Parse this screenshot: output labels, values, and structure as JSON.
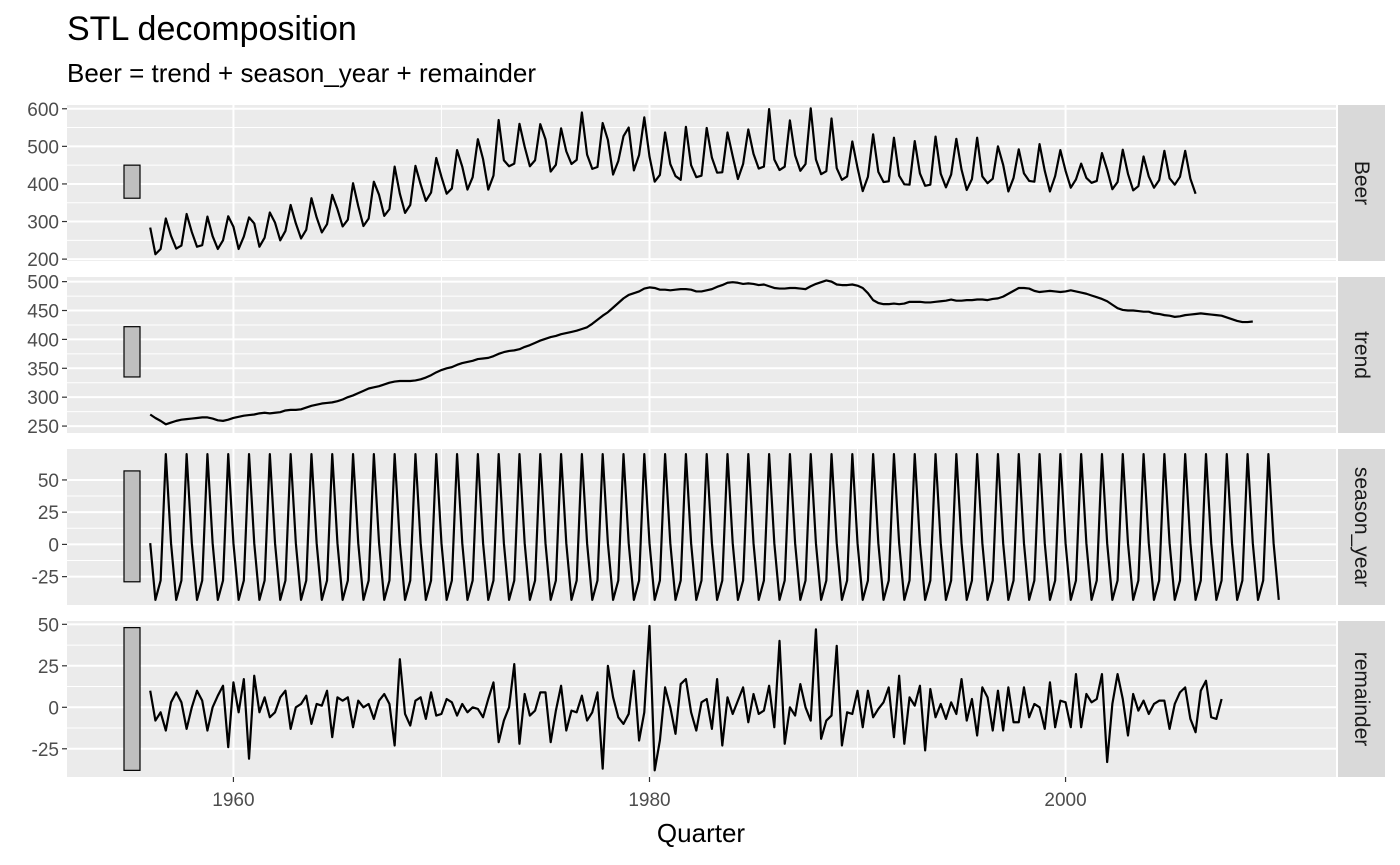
{
  "chart_data": {
    "type": "line",
    "title": "STL decomposition",
    "subtitle": "Beer = trend + season_year + remainder",
    "xlabel": "Quarter",
    "x_ticks": [
      "1960",
      "1980",
      "2000"
    ],
    "x_tick_values": [
      1960,
      1980,
      2000
    ],
    "x_range": [
      1952,
      2013
    ],
    "x_start": 1956.0,
    "x_step": 0.25,
    "panel_background": "#ebebeb",
    "strip_background": "#d9d9d9",
    "grid": true,
    "line_color": "#000000",
    "scale_bar_color": "#bfbfbf",
    "facets": [
      {
        "name": "Beer",
        "ylim": [
          195,
          610
        ],
        "y_ticks": [
          200,
          300,
          400,
          500,
          600
        ],
        "y_tick_labels": [
          "200",
          "300",
          "400",
          "500",
          "600"
        ],
        "scale_bar": [
          362,
          450
        ],
        "values": [
          284,
          213,
          227,
          308,
          262,
          228,
          236,
          320,
          272,
          233,
          237,
          313,
          261,
          227,
          250,
          314,
          286,
          227,
          260,
          311,
          295,
          233,
          257,
          324,
          297,
          250,
          275,
          344,
          295,
          255,
          278,
          362,
          311,
          271,
          293,
          371,
          333,
          287,
          305,
          402,
          341,
          288,
          308,
          406,
          371,
          315,
          333,
          446,
          374,
          323,
          344,
          448,
          399,
          355,
          377,
          469,
          419,
          374,
          388,
          490,
          446,
          385,
          418,
          519,
          466,
          385,
          422,
          570,
          463,
          447,
          454,
          560,
          499,
          447,
          463,
          559,
          519,
          433,
          451,
          548,
          487,
          453,
          464,
          590,
          478,
          440,
          445,
          562,
          517,
          425,
          461,
          527,
          550,
          436,
          477,
          577,
          473,
          406,
          424,
          537,
          453,
          421,
          411,
          552,
          450,
          418,
          422,
          549,
          470,
          430,
          431,
          537,
          474,
          413,
          453,
          545,
          480,
          441,
          446,
          599,
          465,
          437,
          446,
          569,
          476,
          435,
          453,
          601,
          465,
          426,
          434,
          574,
          442,
          411,
          420,
          513,
          443,
          381,
          419,
          532,
          432,
          405,
          407,
          523,
          422,
          399,
          398,
          514,
          428,
          395,
          398,
          526,
          427,
          391,
          425,
          520,
          438,
          384,
          413,
          523,
          420,
          402,
          414,
          500,
          451,
          380,
          416,
          492,
          428,
          408,
          406,
          506,
          435,
          380,
          421,
          490,
          435,
          390,
          412,
          454,
          416,
          403,
          408,
          482,
          438,
          386,
          405,
          491,
          427,
          383,
          394,
          473,
          420,
          390,
          410,
          488,
          415,
          398,
          419,
          488,
          414,
          374
        ]
      },
      {
        "name": "trend",
        "ylim": [
          238,
          508
        ],
        "y_ticks": [
          250,
          300,
          350,
          400,
          450,
          500
        ],
        "y_tick_labels": [
          "250",
          "300",
          "350",
          "400",
          "450",
          "500"
        ],
        "scale_bar": [
          335,
          422
        ],
        "values": [
          270,
          264,
          259,
          253,
          256,
          259,
          261,
          262,
          263,
          264,
          265,
          265,
          263,
          260,
          259,
          261,
          264,
          266,
          268,
          269,
          270,
          272,
          273,
          272,
          273,
          274,
          277,
          278,
          278,
          279,
          282,
          285,
          287,
          289,
          290,
          291,
          293,
          296,
          300,
          303,
          307,
          311,
          315,
          317,
          319,
          322,
          325,
          327,
          328,
          328,
          328,
          329,
          331,
          334,
          338,
          343,
          347,
          350,
          352,
          356,
          359,
          361,
          363,
          366,
          367,
          368,
          371,
          375,
          378,
          380,
          381,
          383,
          387,
          390,
          394,
          398,
          401,
          404,
          406,
          409,
          411,
          413,
          415,
          418,
          421,
          427,
          434,
          441,
          447,
          455,
          463,
          471,
          477,
          480,
          483,
          488,
          490,
          489,
          486,
          486,
          485,
          486,
          487,
          487,
          486,
          483,
          483,
          485,
          487,
          491,
          494,
          498,
          499,
          498,
          496,
          497,
          496,
          494,
          495,
          492,
          489,
          488,
          488,
          489,
          489,
          488,
          487,
          492,
          496,
          499,
          502,
          500,
          495,
          494,
          494,
          495,
          493,
          489,
          480,
          468,
          463,
          461,
          461,
          462,
          461,
          462,
          465,
          465,
          465,
          464,
          464,
          465,
          466,
          467,
          469,
          467,
          467,
          468,
          468,
          469,
          469,
          468,
          470,
          471,
          474,
          479,
          484,
          489,
          489,
          488,
          484,
          482,
          483,
          484,
          483,
          482,
          483,
          485,
          483,
          481,
          479,
          476,
          473,
          470,
          466,
          460,
          454,
          451,
          450,
          450,
          449,
          448,
          448,
          445,
          444,
          442,
          441,
          439,
          440,
          442,
          443,
          444,
          445,
          444,
          443,
          442,
          441,
          438,
          435,
          432,
          430,
          430,
          431
        ]
      },
      {
        "name": "season_year",
        "ylim": [
          -47,
          74
        ],
        "y_ticks": [
          -25,
          0,
          25,
          50
        ],
        "y_tick_labels": [
          "-25",
          "0",
          "25",
          "50"
        ],
        "scale_bar": [
          -29,
          57
        ],
        "values": [
          1,
          -43,
          -28,
          70,
          1,
          -43,
          -28,
          70,
          1,
          -43,
          -28,
          70,
          1,
          -43,
          -28,
          70,
          1,
          -43,
          -28,
          70,
          1,
          -43,
          -28,
          70,
          1,
          -43,
          -28,
          70,
          1,
          -43,
          -28,
          70,
          1,
          -43,
          -28,
          70,
          1,
          -43,
          -28,
          70,
          1,
          -43,
          -28,
          70,
          1,
          -43,
          -28,
          70,
          1,
          -43,
          -28,
          70,
          1,
          -43,
          -28,
          70,
          1,
          -43,
          -28,
          70,
          1,
          -43,
          -28,
          70,
          1,
          -43,
          -28,
          70,
          1,
          -43,
          -28,
          70,
          1,
          -43,
          -28,
          70,
          1,
          -43,
          -28,
          70,
          1,
          -43,
          -28,
          70,
          1,
          -43,
          -28,
          70,
          1,
          -43,
          -28,
          70,
          1,
          -43,
          -28,
          70,
          1,
          -43,
          -28,
          70,
          1,
          -43,
          -28,
          70,
          1,
          -43,
          -28,
          70,
          1,
          -43,
          -28,
          70,
          1,
          -43,
          -28,
          70,
          1,
          -43,
          -28,
          70,
          1,
          -43,
          -28,
          70,
          1,
          -43,
          -28,
          70,
          1,
          -43,
          -28,
          70,
          1,
          -43,
          -28,
          70,
          1,
          -43,
          -28,
          70,
          1,
          -43,
          -28,
          70,
          1,
          -43,
          -28,
          70,
          1,
          -43,
          -28,
          70,
          1,
          -43,
          -28,
          70,
          1,
          -43,
          -28,
          70,
          1,
          -43,
          -28,
          70,
          1,
          -43,
          -28,
          70,
          1,
          -43,
          -28,
          70,
          1,
          -43,
          -28,
          70,
          1,
          -43,
          -28,
          70,
          1,
          -43,
          -28,
          70,
          1,
          -43,
          -28,
          70,
          1,
          -43,
          -28,
          70,
          1,
          -43,
          -28,
          70,
          1,
          -43,
          -28,
          70,
          1,
          -43,
          -28,
          70,
          1,
          -43,
          -28,
          70,
          1,
          -43,
          -28,
          70,
          1,
          -43,
          -28,
          70,
          1,
          -43
        ]
      },
      {
        "name": "remainder",
        "ylim": [
          -42,
          52
        ],
        "y_ticks": [
          -25,
          0,
          25,
          50
        ],
        "y_tick_labels": [
          "-25",
          "0",
          "25",
          "50"
        ],
        "scale_bar": [
          -38,
          48
        ],
        "values": [
          10,
          -8,
          -3,
          -14,
          3,
          9,
          3,
          -13,
          0,
          10,
          4,
          -14,
          0,
          7,
          13,
          -24,
          15,
          -3,
          17,
          -31,
          19,
          -3,
          6,
          -6,
          -3,
          6,
          10,
          -13,
          0,
          2,
          7,
          -10,
          2,
          1,
          10,
          -18,
          6,
          4,
          6,
          -12,
          4,
          0,
          2,
          -7,
          4,
          8,
          2,
          -23,
          29,
          -4,
          -11,
          4,
          6,
          -7,
          9,
          -5,
          -4,
          5,
          3,
          -5,
          2,
          -3,
          0,
          -1,
          -6,
          5,
          15,
          -21,
          -8,
          0,
          26,
          -22,
          8,
          -5,
          -2,
          9,
          9,
          -21,
          -2,
          13,
          -14,
          -2,
          -3,
          7,
          -8,
          -3,
          9,
          -37,
          25,
          6,
          -6,
          -10,
          -4,
          22,
          -20,
          -3,
          49,
          -38,
          -20,
          12,
          0,
          -16,
          14,
          17,
          -3,
          -14,
          3,
          5,
          -13,
          17,
          -23,
          6,
          -4,
          4,
          12,
          -9,
          8,
          -4,
          -2,
          13,
          -12,
          40,
          -22,
          0,
          -5,
          14,
          0,
          -8,
          47,
          -19,
          -8,
          -5,
          37,
          -23,
          -3,
          -4,
          10,
          -12,
          10,
          -6,
          -1,
          3,
          12,
          -18,
          19,
          -22,
          6,
          1,
          13,
          -26,
          11,
          -6,
          2,
          -7,
          3,
          -4,
          17,
          -8,
          5,
          -17,
          12,
          6,
          -14,
          10,
          -14,
          12,
          -9,
          -9,
          12,
          -6,
          2,
          0,
          -13,
          15,
          -12,
          4,
          3,
          -12,
          20,
          -12,
          8,
          3,
          5,
          20,
          -33,
          2,
          20,
          5,
          -17,
          8,
          -2,
          4,
          -4,
          2,
          4,
          4,
          -13,
          2,
          9,
          12,
          -7,
          -15,
          10,
          16,
          -6,
          -7,
          5
        ]
      }
    ]
  }
}
